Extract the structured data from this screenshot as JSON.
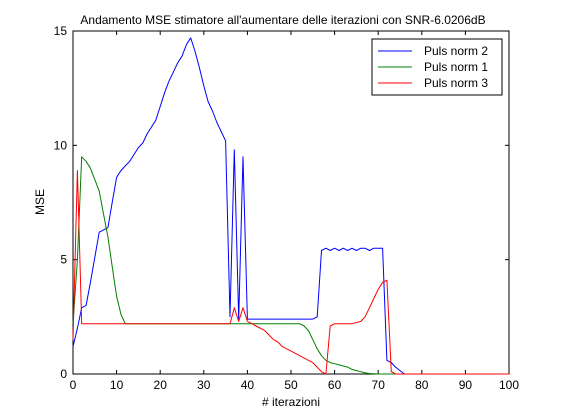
{
  "chart_data": {
    "type": "line",
    "title": "Andamento MSE stimatore all'aumentare delle iterazioni con SNR-6.0206dB",
    "xlabel": "# iterazioni",
    "ylabel": "MSE",
    "xlim": [
      0,
      100
    ],
    "ylim": [
      0,
      15
    ],
    "xticks": [
      0,
      10,
      20,
      30,
      40,
      50,
      60,
      70,
      80,
      90,
      100
    ],
    "yticks": [
      0,
      5,
      10,
      15
    ],
    "grid": false,
    "legend_position": "top-right",
    "series": [
      {
        "name": "Puls norm 2",
        "color": "#0000ff",
        "x": [
          0,
          1,
          2,
          3,
          4,
          5,
          6,
          7,
          8,
          9,
          10,
          11,
          12,
          13,
          14,
          15,
          16,
          17,
          18,
          19,
          20,
          21,
          22,
          23,
          24,
          25,
          26,
          27,
          28,
          29,
          30,
          31,
          32,
          33,
          34,
          35,
          36,
          37,
          38,
          39,
          40,
          41,
          42,
          43,
          44,
          45,
          46,
          47,
          48,
          49,
          50,
          51,
          52,
          53,
          54,
          55,
          56,
          57,
          58,
          59,
          60,
          61,
          62,
          63,
          64,
          65,
          66,
          67,
          68,
          69,
          70,
          71,
          72,
          73,
          74,
          75,
          76,
          77,
          78,
          79,
          80,
          85,
          90,
          95,
          100
        ],
        "y": [
          1.2,
          2.0,
          2.9,
          3.0,
          4.0,
          5.1,
          6.2,
          6.3,
          6.4,
          7.5,
          8.6,
          8.9,
          9.1,
          9.3,
          9.6,
          9.9,
          10.1,
          10.5,
          10.8,
          11.1,
          11.7,
          12.3,
          12.8,
          13.2,
          13.6,
          13.9,
          14.4,
          14.7,
          14.1,
          13.4,
          12.6,
          11.9,
          11.5,
          11.0,
          10.6,
          10.2,
          2.5,
          9.8,
          2.4,
          9.5,
          2.4,
          2.4,
          2.4,
          2.4,
          2.4,
          2.4,
          2.4,
          2.4,
          2.4,
          2.4,
          2.4,
          2.4,
          2.4,
          2.4,
          2.4,
          2.4,
          2.5,
          5.4,
          5.5,
          5.4,
          5.5,
          5.4,
          5.5,
          5.4,
          5.5,
          5.4,
          5.5,
          5.5,
          5.4,
          5.5,
          5.5,
          5.5,
          0.6,
          0.5,
          0.3,
          0.15,
          0.0,
          0.0,
          0.0,
          0.0,
          0.0,
          0.0,
          0.0,
          0.0,
          0.0
        ]
      },
      {
        "name": "Puls norm 1",
        "color": "#008000",
        "x": [
          0,
          1,
          2,
          3,
          4,
          5,
          6,
          7,
          8,
          9,
          10,
          11,
          12,
          14,
          16,
          18,
          20,
          25,
          30,
          35,
          40,
          42,
          44,
          46,
          48,
          50,
          52,
          53,
          54,
          55,
          56,
          57,
          58,
          59,
          60,
          61,
          62,
          63,
          64,
          65,
          66,
          67,
          68,
          70,
          72,
          75,
          80,
          90,
          100
        ],
        "y": [
          2.2,
          5.0,
          9.5,
          9.3,
          9.0,
          8.5,
          8.0,
          7.0,
          6.0,
          4.7,
          3.4,
          2.6,
          2.2,
          2.2,
          2.2,
          2.2,
          2.2,
          2.2,
          2.2,
          2.2,
          2.2,
          2.2,
          2.2,
          2.2,
          2.2,
          2.2,
          2.2,
          2.1,
          1.9,
          1.5,
          1.1,
          0.8,
          0.6,
          0.5,
          0.45,
          0.4,
          0.35,
          0.3,
          0.2,
          0.15,
          0.1,
          0.05,
          0.02,
          0.0,
          0.0,
          0.0,
          0.0,
          0.0,
          0.0
        ]
      },
      {
        "name": "Puls norm 3",
        "color": "#ff0000",
        "x": [
          0,
          1,
          2,
          3,
          5,
          10,
          15,
          20,
          25,
          30,
          35,
          36,
          37,
          38,
          39,
          40,
          41,
          42,
          44,
          45,
          46,
          47,
          48,
          49,
          50,
          52,
          54,
          55,
          56,
          57,
          58,
          59,
          60,
          62,
          64,
          66,
          67,
          68,
          69,
          70,
          71,
          72,
          73,
          74,
          75,
          80,
          90,
          100
        ],
        "y": [
          1.5,
          8.9,
          2.2,
          2.2,
          2.2,
          2.2,
          2.2,
          2.2,
          2.2,
          2.2,
          2.2,
          2.2,
          2.9,
          2.3,
          2.9,
          2.3,
          2.2,
          2.1,
          1.9,
          1.7,
          1.5,
          1.4,
          1.2,
          1.1,
          1.0,
          0.8,
          0.6,
          0.5,
          0.3,
          0.1,
          0.0,
          2.1,
          2.2,
          2.2,
          2.2,
          2.3,
          2.5,
          2.9,
          3.3,
          3.7,
          4.0,
          4.1,
          0.1,
          0.0,
          0.0,
          0.0,
          0.0,
          0.0
        ]
      }
    ]
  }
}
